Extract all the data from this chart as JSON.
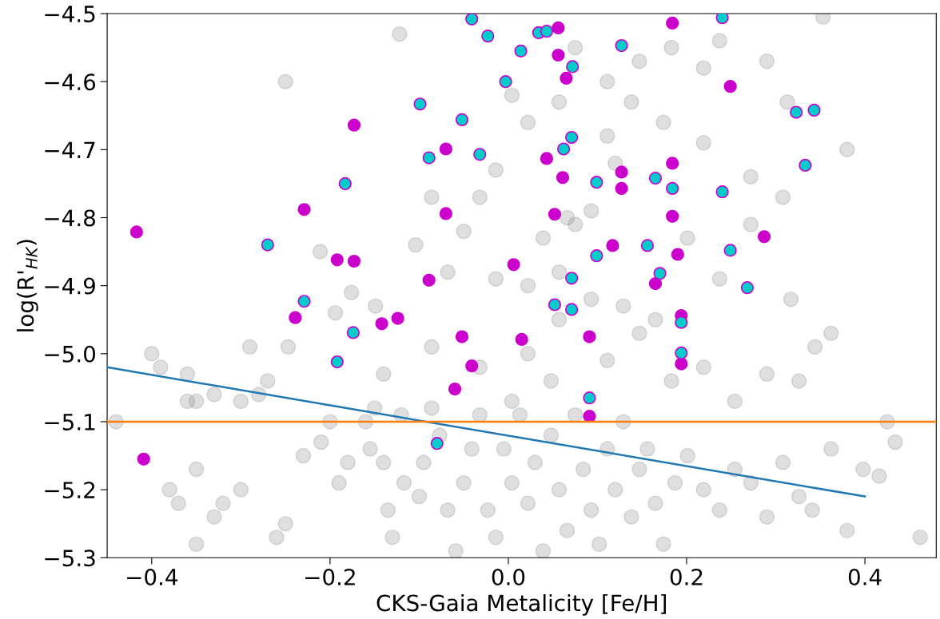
{
  "chart_data": {
    "type": "scatter",
    "xlabel": "CKS-Gaia Metalicity [Fe/H]",
    "ylabel": "log(R'$_{HK}$)",
    "xlim": [
      -0.45,
      0.48
    ],
    "ylim": [
      -5.3,
      -4.5
    ],
    "xticks": [
      {
        "value": -0.4,
        "label": "−0.4"
      },
      {
        "value": -0.2,
        "label": "−0.2"
      },
      {
        "value": 0.0,
        "label": "0.0"
      },
      {
        "value": 0.2,
        "label": "0.2"
      },
      {
        "value": 0.4,
        "label": "0.4"
      }
    ],
    "yticks": [
      {
        "value": -5.3,
        "label": "−5.3"
      },
      {
        "value": -5.2,
        "label": "−5.2"
      },
      {
        "value": -5.1,
        "label": "−5.1"
      },
      {
        "value": -5.0,
        "label": "−5.0"
      },
      {
        "value": -4.9,
        "label": "−4.9"
      },
      {
        "value": -4.8,
        "label": "−4.8"
      },
      {
        "value": -4.7,
        "label": "−4.7"
      },
      {
        "value": -4.6,
        "label": "−4.6"
      },
      {
        "value": -4.5,
        "label": "−4.5"
      }
    ],
    "grid": false,
    "legend": false,
    "marker": "circle",
    "ref_lines": [
      {
        "axis": "y",
        "value": -5.1,
        "color": "#ff7f0e"
      }
    ],
    "series": [
      {
        "type": "scatter",
        "color": "#808080",
        "x": [
          -0.44,
          -0.4,
          -0.39,
          -0.36,
          -0.36,
          -0.35,
          -0.33,
          -0.3,
          -0.29,
          -0.27,
          -0.28,
          -0.38,
          -0.37,
          -0.35,
          -0.33,
          -0.32,
          -0.3,
          -0.35,
          -0.26,
          -0.25,
          -0.23,
          -0.21,
          -0.2,
          -0.19,
          -0.18,
          -0.16,
          -0.155,
          -0.15,
          -0.14,
          -0.135,
          -0.13,
          -0.12,
          -0.117,
          -0.1,
          -0.095,
          -0.086,
          -0.077,
          -0.068,
          -0.059,
          -0.05,
          -0.041,
          -0.032,
          -0.023,
          -0.014,
          -0.005,
          0.004,
          0.013,
          0.022,
          0.03,
          0.039,
          0.048,
          0.057,
          0.066,
          0.075,
          0.084,
          0.093,
          0.102,
          0.111,
          0.12,
          0.129,
          0.138,
          0.147,
          0.156,
          0.165,
          0.174,
          0.187,
          0.201,
          0.219,
          0.237,
          0.254,
          0.272,
          0.29,
          0.308,
          0.326,
          0.341,
          0.362,
          0.38,
          0.398,
          0.416,
          0.462,
          0.425,
          0.344,
          0.38,
          0.353,
          0.29,
          0.313,
          0.237,
          0.219,
          0.174,
          0.138,
          0.111,
          0.093,
          0.075,
          0.039,
          0.022,
          0.004,
          -0.014,
          -0.032,
          -0.05,
          -0.068,
          -0.086,
          -0.104,
          -0.122,
          -0.149,
          -0.176,
          -0.211,
          -0.25,
          -0.247,
          -0.194,
          -0.14,
          -0.086,
          -0.032,
          0.022,
          0.057,
          0.111,
          0.147,
          0.183,
          0.219,
          0.254,
          0.29,
          0.326,
          -0.014,
          0.022,
          0.057,
          0.093,
          0.129,
          0.165,
          0.201,
          0.237,
          0.272,
          0.308,
          0.004,
          0.048,
          0.066,
          0.12,
          0.057,
          0.075,
          0.111,
          0.147,
          0.183,
          0.219,
          0.272,
          0.317,
          0.362,
          0.434
        ],
        "values": [
          -5.1,
          -5.0,
          -5.02,
          -5.03,
          -5.07,
          -5.07,
          -5.06,
          -5.07,
          -4.99,
          -5.04,
          -5.06,
          -5.2,
          -5.22,
          -5.28,
          -5.24,
          -5.22,
          -5.2,
          -5.17,
          -5.27,
          -5.25,
          -5.15,
          -5.13,
          -5.1,
          -5.19,
          -5.16,
          -5.1,
          -5.14,
          -5.08,
          -5.16,
          -5.23,
          -5.27,
          -5.09,
          -5.19,
          -5.21,
          -5.16,
          -5.08,
          -5.12,
          -5.23,
          -5.29,
          -5.19,
          -5.14,
          -5.09,
          -5.23,
          -5.27,
          -5.14,
          -5.19,
          -5.09,
          -5.22,
          -5.16,
          -5.29,
          -5.12,
          -5.2,
          -5.26,
          -5.09,
          -5.17,
          -5.23,
          -5.28,
          -5.14,
          -5.2,
          -5.1,
          -5.24,
          -5.17,
          -5.14,
          -5.22,
          -5.28,
          -5.19,
          -5.15,
          -5.2,
          -5.23,
          -5.17,
          -5.19,
          -5.24,
          -5.16,
          -5.21,
          -5.23,
          -5.14,
          -5.26,
          -5.17,
          -5.18,
          -5.27,
          -5.1,
          -4.99,
          -4.7,
          -4.505,
          -4.57,
          -4.63,
          -4.54,
          -4.58,
          -4.66,
          -4.63,
          -4.68,
          -4.79,
          -4.81,
          -4.83,
          -4.66,
          -4.62,
          -4.73,
          -4.77,
          -4.82,
          -4.88,
          -4.77,
          -4.84,
          -4.53,
          -4.93,
          -4.91,
          -4.85,
          -4.6,
          -4.99,
          -4.94,
          -5.03,
          -4.99,
          -5.02,
          -5.0,
          -4.95,
          -5.01,
          -4.97,
          -5.04,
          -5.02,
          -5.07,
          -5.03,
          -5.04,
          -4.89,
          -4.9,
          -4.88,
          -4.92,
          -4.93,
          -4.95,
          -4.83,
          -4.89,
          -4.81,
          -4.77,
          -5.07,
          -5.04,
          -4.8,
          -4.72,
          -4.63,
          -4.55,
          -4.6,
          -4.57,
          -4.55,
          -4.69,
          -4.74,
          -4.92,
          -4.97,
          -5.13
        ]
      },
      {
        "type": "scatter",
        "color": "#cc00cc",
        "x": [
          -0.417,
          -0.409,
          -0.229,
          -0.173,
          -0.192,
          -0.173,
          -0.239,
          -0.142,
          -0.124,
          -0.089,
          -0.07,
          -0.07,
          -0.052,
          -0.06,
          -0.041,
          0.006,
          0.015,
          0.043,
          0.052,
          0.061,
          0.056,
          0.056,
          0.065,
          0.091,
          0.091,
          0.117,
          0.127,
          0.127,
          0.165,
          0.19,
          0.184,
          0.184,
          0.184,
          0.194,
          0.194,
          0.249,
          0.287
        ],
        "values": [
          -4.821,
          -5.155,
          -4.788,
          -4.664,
          -4.862,
          -4.864,
          -4.947,
          -4.956,
          -4.948,
          -4.892,
          -4.699,
          -4.794,
          -4.975,
          -5.052,
          -5.018,
          -4.869,
          -4.979,
          -4.713,
          -4.795,
          -4.741,
          -4.521,
          -4.561,
          -4.595,
          -4.975,
          -5.092,
          -4.841,
          -4.733,
          -4.757,
          -4.897,
          -4.854,
          -4.798,
          -4.72,
          -4.514,
          -4.944,
          -5.015,
          -4.607,
          -4.828
        ]
      },
      {
        "type": "scatter",
        "color": "#00cccc",
        "x": [
          -0.041,
          -0.023,
          0.014,
          -0.003,
          0.034,
          0.043,
          0.072,
          0.127,
          0.24,
          -0.099,
          -0.052,
          -0.183,
          -0.089,
          -0.032,
          0.062,
          0.071,
          0.099,
          0.165,
          0.184,
          0.24,
          0.333,
          0.323,
          0.343,
          -0.27,
          -0.229,
          -0.174,
          -0.192,
          -0.08,
          0.071,
          0.052,
          0.071,
          0.099,
          0.156,
          0.17,
          0.194,
          0.194,
          0.249,
          0.268,
          0.091
        ],
        "values": [
          -4.508,
          -4.533,
          -4.555,
          -4.6,
          -4.528,
          -4.526,
          -4.578,
          -4.547,
          -4.506,
          -4.633,
          -4.656,
          -4.75,
          -4.712,
          -4.707,
          -4.699,
          -4.682,
          -4.748,
          -4.742,
          -4.757,
          -4.762,
          -4.723,
          -4.645,
          -4.642,
          -4.84,
          -4.923,
          -4.969,
          -5.012,
          -5.132,
          -4.889,
          -4.928,
          -4.935,
          -4.856,
          -4.841,
          -4.882,
          -4.954,
          -4.999,
          -4.848,
          -4.903,
          -5.065
        ]
      },
      {
        "type": "line",
        "color": "#1f77b4",
        "marker": "none",
        "x": [
          -0.45,
          0.4
        ],
        "values": [
          -5.02,
          -5.21
        ]
      }
    ]
  }
}
